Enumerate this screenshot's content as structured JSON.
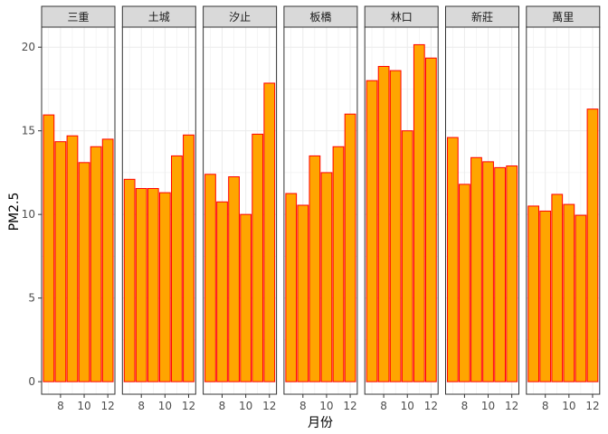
{
  "chart_data": {
    "type": "bar",
    "xlabel": "月份",
    "ylabel": "PM2.5",
    "x": [
      7,
      8,
      9,
      10,
      11,
      12
    ],
    "xticks": [
      8,
      10,
      12
    ],
    "xlim": [
      6.4,
      12.6
    ],
    "yticks": [
      0,
      5,
      10,
      15,
      20
    ],
    "ylim": [
      -0.75,
      21.2
    ],
    "grid": true,
    "colors": {
      "fill": "#FFA500",
      "stroke": "#FF0000",
      "panel_border": "#333333",
      "strip_bg": "#d9d9d9",
      "grid": "#ebebeb"
    },
    "panels": [
      {
        "name": "三重",
        "values": [
          15.95,
          14.35,
          14.7,
          13.1,
          14.05,
          14.5
        ]
      },
      {
        "name": "土城",
        "values": [
          12.1,
          11.55,
          11.55,
          11.3,
          13.5,
          14.75
        ]
      },
      {
        "name": "汐止",
        "values": [
          12.4,
          10.75,
          12.25,
          10.0,
          14.8,
          17.85
        ]
      },
      {
        "name": "板橋",
        "values": [
          11.25,
          10.55,
          13.5,
          12.5,
          14.05,
          16.0
        ]
      },
      {
        "name": "林口",
        "values": [
          18.0,
          18.85,
          18.6,
          15.0,
          20.15,
          19.35
        ]
      },
      {
        "name": "新莊",
        "values": [
          14.6,
          11.8,
          13.4,
          13.15,
          12.8,
          12.9
        ]
      },
      {
        "name": "萬里",
        "values": [
          10.5,
          10.2,
          11.2,
          10.6,
          9.95,
          16.3
        ]
      }
    ]
  }
}
